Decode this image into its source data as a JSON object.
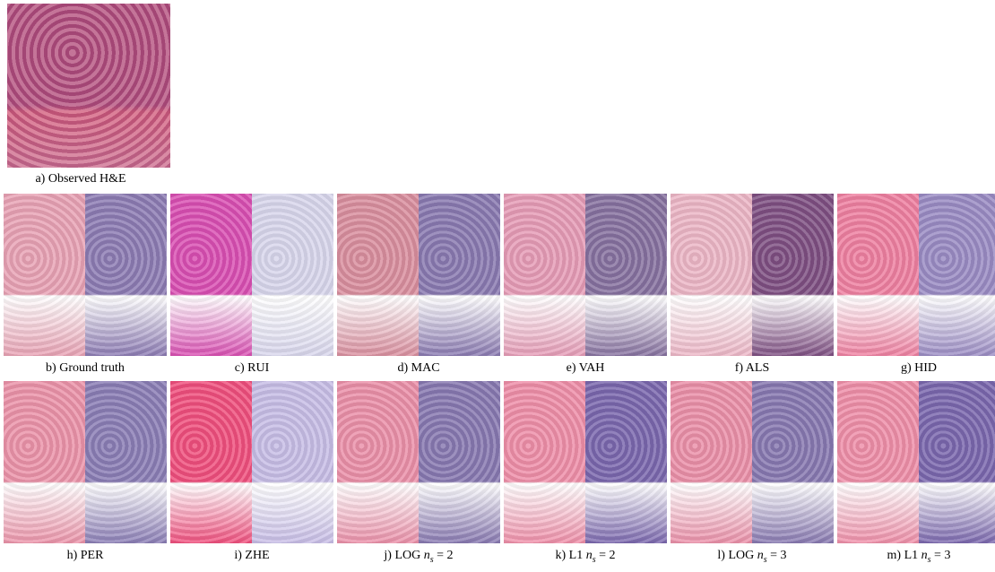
{
  "observed": {
    "caption": "a) Observed H&E",
    "color": "#b5527f"
  },
  "rows": [
    [
      {
        "label": "b) Ground truth",
        "colors": [
          "#e8a2b4",
          "#8c7bb3"
        ]
      },
      {
        "label": "c) RUI",
        "colors": [
          "#d94fb2",
          "#d8d6ec"
        ]
      },
      {
        "label": "d) MAC",
        "colors": [
          "#d98e9e",
          "#8979b0"
        ]
      },
      {
        "label": "e) VAH",
        "colors": [
          "#e59bb6",
          "#86719f"
        ]
      },
      {
        "label": "f) ALS",
        "colors": [
          "#ecb6c6",
          "#7e4f82"
        ]
      },
      {
        "label": "g) HID",
        "colors": [
          "#ee7fa0",
          "#9a8bc3"
        ]
      }
    ],
    [
      {
        "label": "h) PER",
        "colors": [
          "#eb93a9",
          "#8a7db5"
        ]
      },
      {
        "label": "i) ZHE",
        "colors": [
          "#ef4f7d",
          "#c7bde6"
        ]
      },
      {
        "label": "j) LOG",
        "symbol": "n",
        "subscript": "s",
        "relation": "= 2",
        "colors": [
          "#ea8fa8",
          "#8778b0"
        ]
      },
      {
        "label": "k) L1",
        "symbol": "n",
        "subscript": "s",
        "relation": "= 2",
        "colors": [
          "#ee8ea8",
          "#7a67ad"
        ]
      },
      {
        "label": "l) LOG",
        "symbol": "n",
        "subscript": "s",
        "relation": "= 3",
        "colors": [
          "#ea8fa8",
          "#8778b0"
        ]
      },
      {
        "label": "m) L1",
        "symbol": "n",
        "subscript": "s",
        "relation": "= 3",
        "colors": [
          "#ee8ea8",
          "#7a67ad"
        ]
      }
    ]
  ]
}
